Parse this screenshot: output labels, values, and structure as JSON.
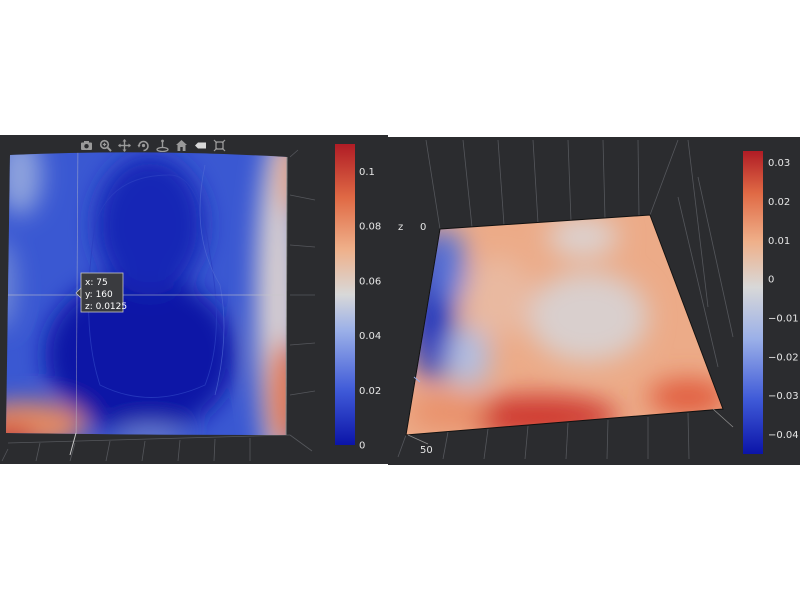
{
  "chart_data": [
    {
      "type": "heatmap",
      "title": "",
      "view": "3D surface viewed from top",
      "colorscale": [
        "#0b14a8",
        "#3f5ad8",
        "#9bb0e8",
        "#d8d8d8",
        "#efb08a",
        "#e06a45",
        "#b01c25"
      ],
      "colorbar": {
        "min": 0,
        "max": 0.11,
        "ticks": [
          "0",
          "0.02",
          "0.04",
          "0.06",
          "0.08",
          "0.1"
        ]
      },
      "hover": {
        "x": "x: 75",
        "y": "y: 160",
        "z": "z: 0.0125"
      },
      "grid": true
    },
    {
      "type": "heatmap",
      "title": "",
      "view": "3D surface, tilted perspective",
      "colorscale": [
        "#0b14a8",
        "#3f5ad8",
        "#9bb0e8",
        "#d8d8d8",
        "#efb08a",
        "#e06a45",
        "#b01c25"
      ],
      "colorbar": {
        "min": -0.045,
        "max": 0.033,
        "ticks": [
          "0.03",
          "0.02",
          "0.01",
          "0",
          "−0.01",
          "−0.02",
          "−0.03",
          "−0.04"
        ]
      },
      "axis_labels": {
        "z_title": "z",
        "z_tick": "0",
        "x_tick": "50"
      },
      "grid": true
    }
  ],
  "modebar": {
    "icons": [
      "camera-icon",
      "zoom-icon",
      "pan-icon",
      "orbit-icon",
      "turntable-icon",
      "home-icon",
      "hover-toggle-icon",
      "reset-icon"
    ]
  }
}
